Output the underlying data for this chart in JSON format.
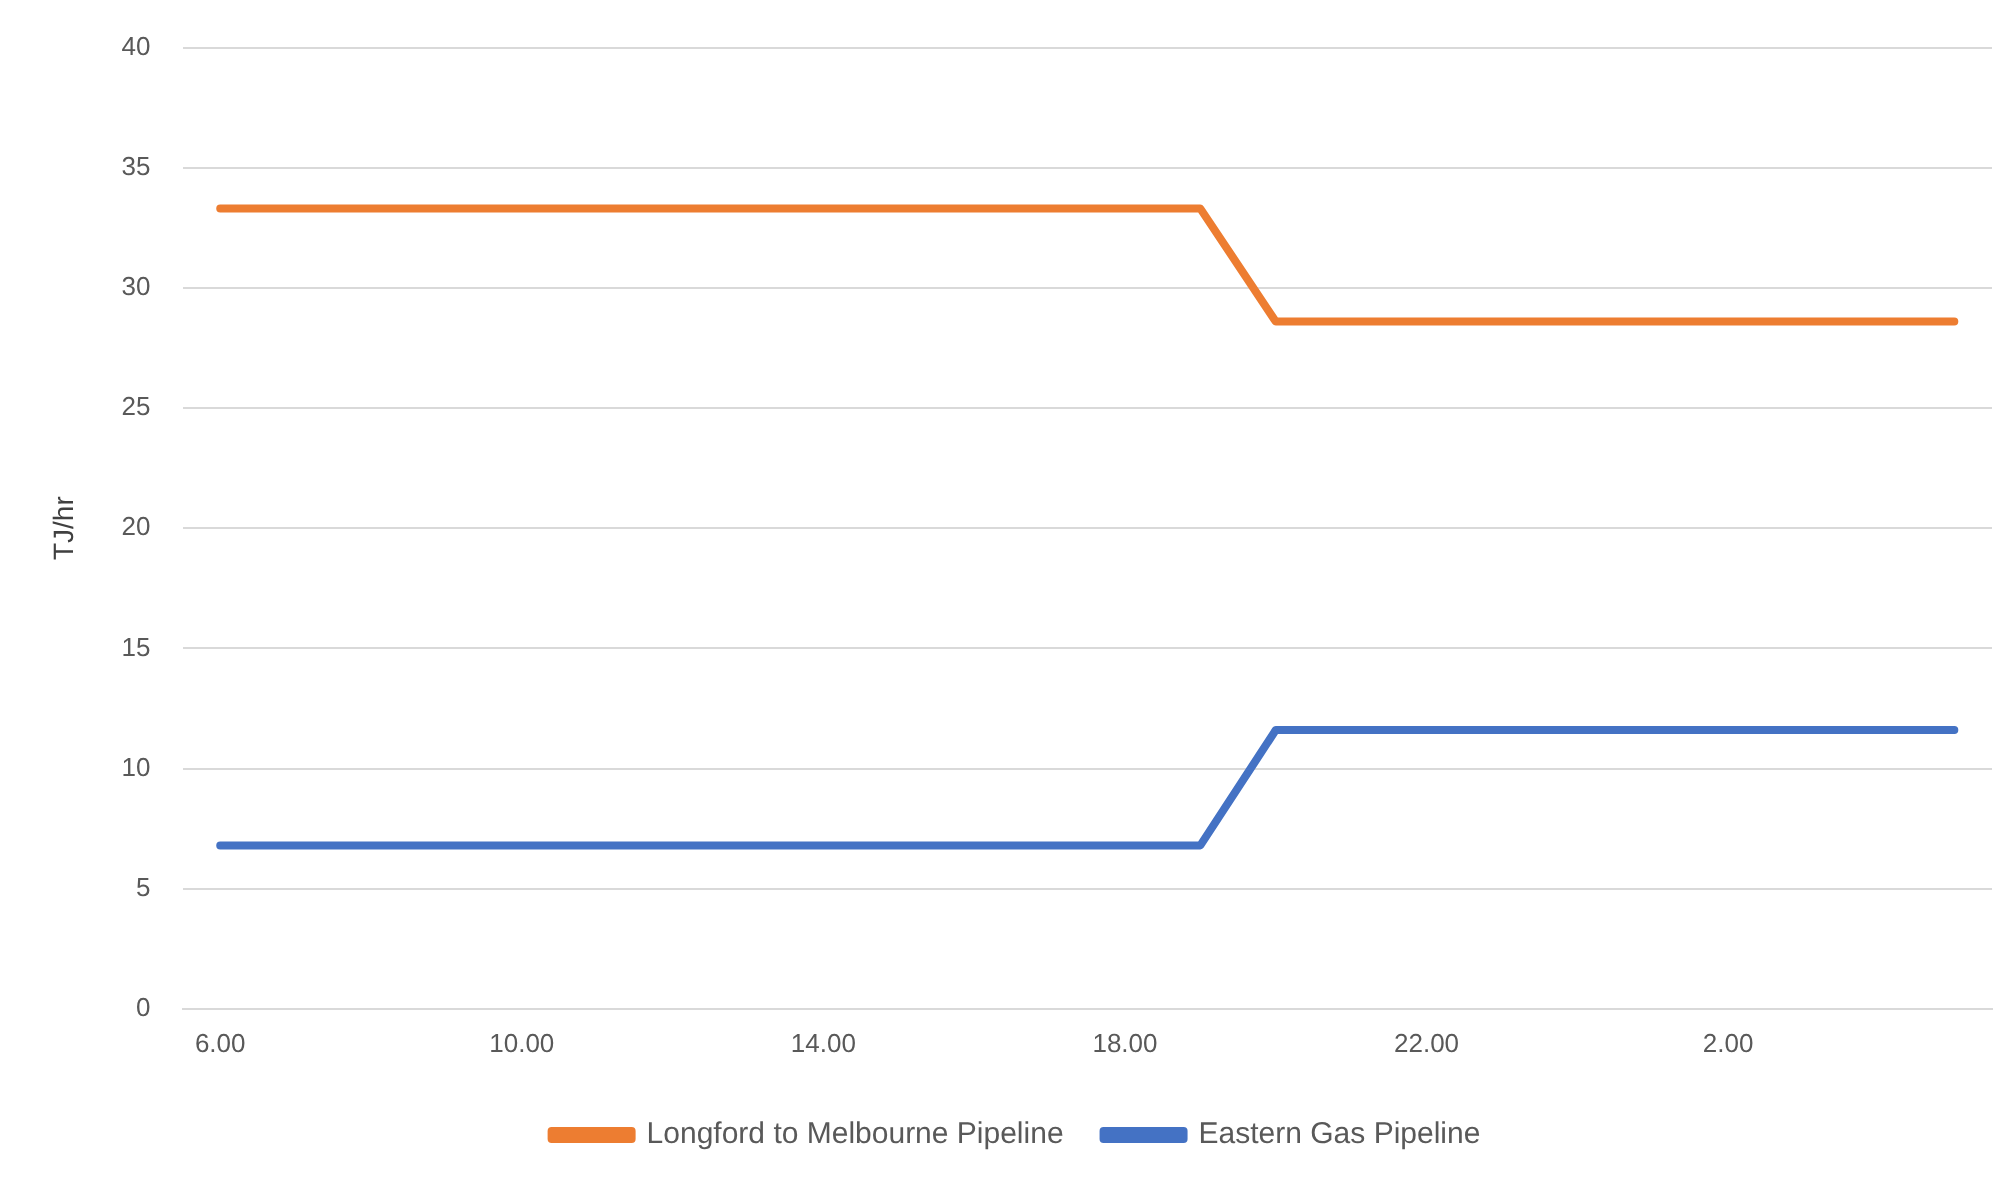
{
  "chart_data": {
    "type": "line",
    "ylabel": "TJ/hr",
    "categories": [
      "6.00",
      null,
      null,
      null,
      "10.00",
      null,
      null,
      null,
      "14.00",
      null,
      null,
      null,
      "18.00",
      null,
      null,
      null,
      "22.00",
      null,
      null,
      null,
      "2.00",
      null,
      null,
      null
    ],
    "series": [
      {
        "name": "Longford to Melbourne Pipeline",
        "color": "#ed7d31",
        "values": [
          33.3,
          33.3,
          33.3,
          33.3,
          33.3,
          33.3,
          33.3,
          33.3,
          33.3,
          33.3,
          33.3,
          33.3,
          33.3,
          33.3,
          28.6,
          28.6,
          28.6,
          28.6,
          28.6,
          28.6,
          28.6,
          28.6,
          28.6,
          28.6
        ]
      },
      {
        "name": "Eastern Gas Pipeline",
        "color": "#4472c4",
        "values": [
          6.8,
          6.8,
          6.8,
          6.8,
          6.8,
          6.8,
          6.8,
          6.8,
          6.8,
          6.8,
          6.8,
          6.8,
          6.8,
          6.8,
          11.6,
          11.6,
          11.6,
          11.6,
          11.6,
          11.6,
          11.6,
          11.6,
          11.6,
          11.6
        ]
      }
    ],
    "ylim": [
      0,
      40
    ],
    "yticks": [
      0,
      5,
      10,
      15,
      20,
      25,
      30,
      35,
      40
    ],
    "grid": "y",
    "legend": "bottom",
    "marker": "none",
    "line_style": "solid"
  }
}
